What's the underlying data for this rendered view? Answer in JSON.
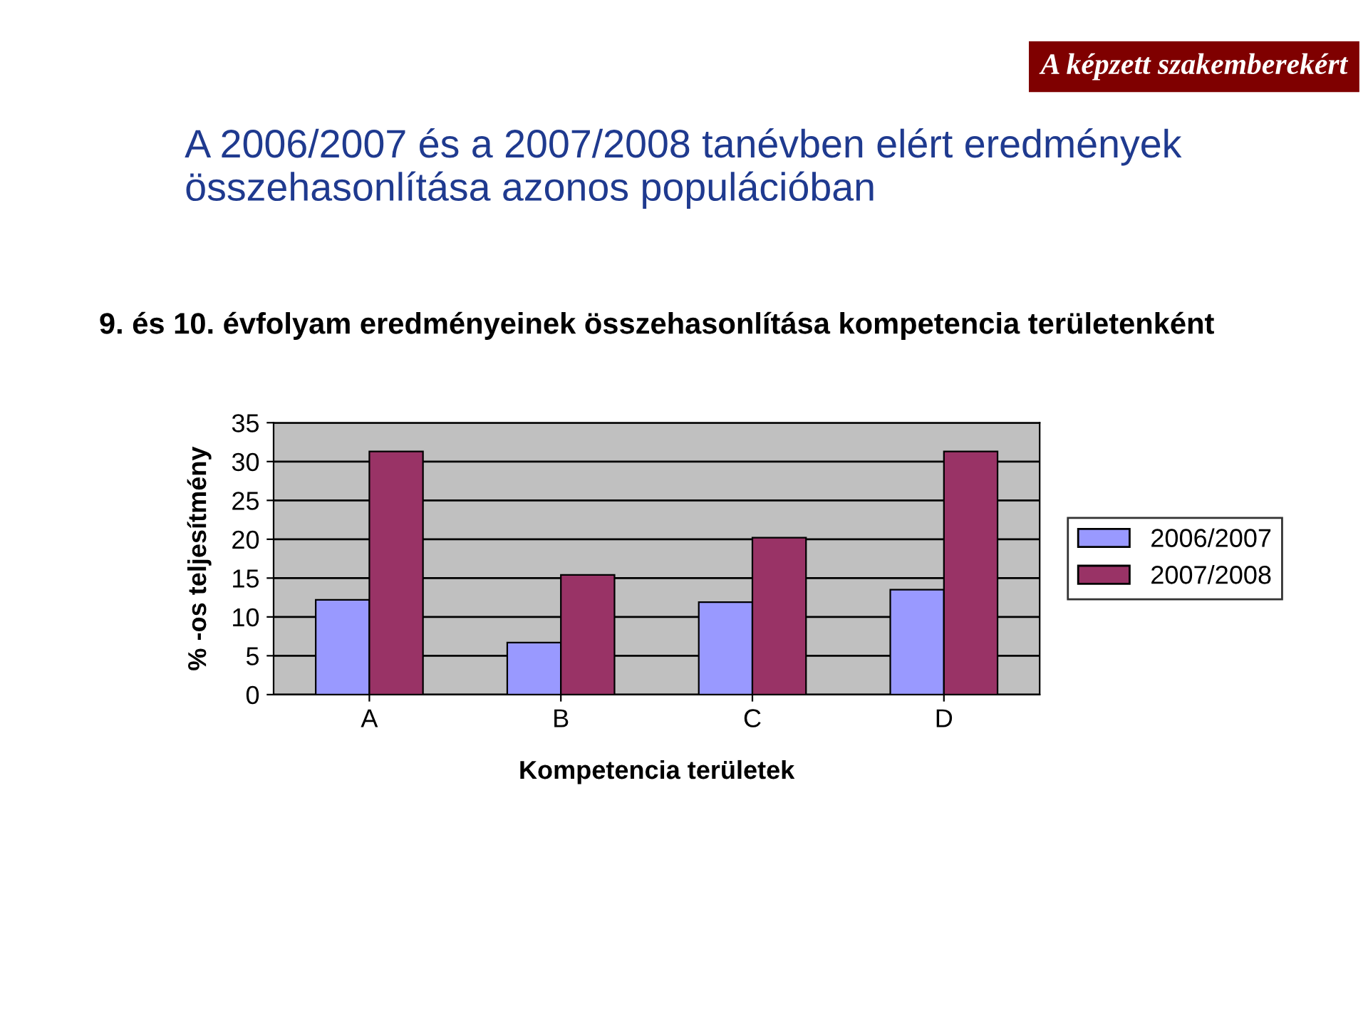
{
  "chart_data": {
    "type": "bar",
    "title": "A 2006/2007 és a 2007/2008 tanévben elért eredmények összehasonlítása azonos populációban",
    "subtitle": "9. és 10. évfolyam eredményeinek összehasonlítása kompetencia területenként",
    "xlabel": "Kompetencia területek",
    "ylabel": "% -os teljesítmény",
    "annotations": [
      "A képzett szakemberekért"
    ],
    "categories": [
      "A",
      "B",
      "C",
      "D"
    ],
    "series": [
      {
        "name": "2006/2007",
        "color": "#9999ff",
        "values": [
          12.2,
          6.7,
          11.9,
          13.5
        ]
      },
      {
        "name": "2007/2008",
        "color": "#993366",
        "values": [
          31.3,
          15.4,
          20.2,
          31.3
        ]
      }
    ],
    "ylim": [
      0,
      35
    ],
    "yticks": [
      0,
      5,
      10,
      15,
      20,
      25,
      30,
      35
    ],
    "grid": "y",
    "legend": "right"
  }
}
